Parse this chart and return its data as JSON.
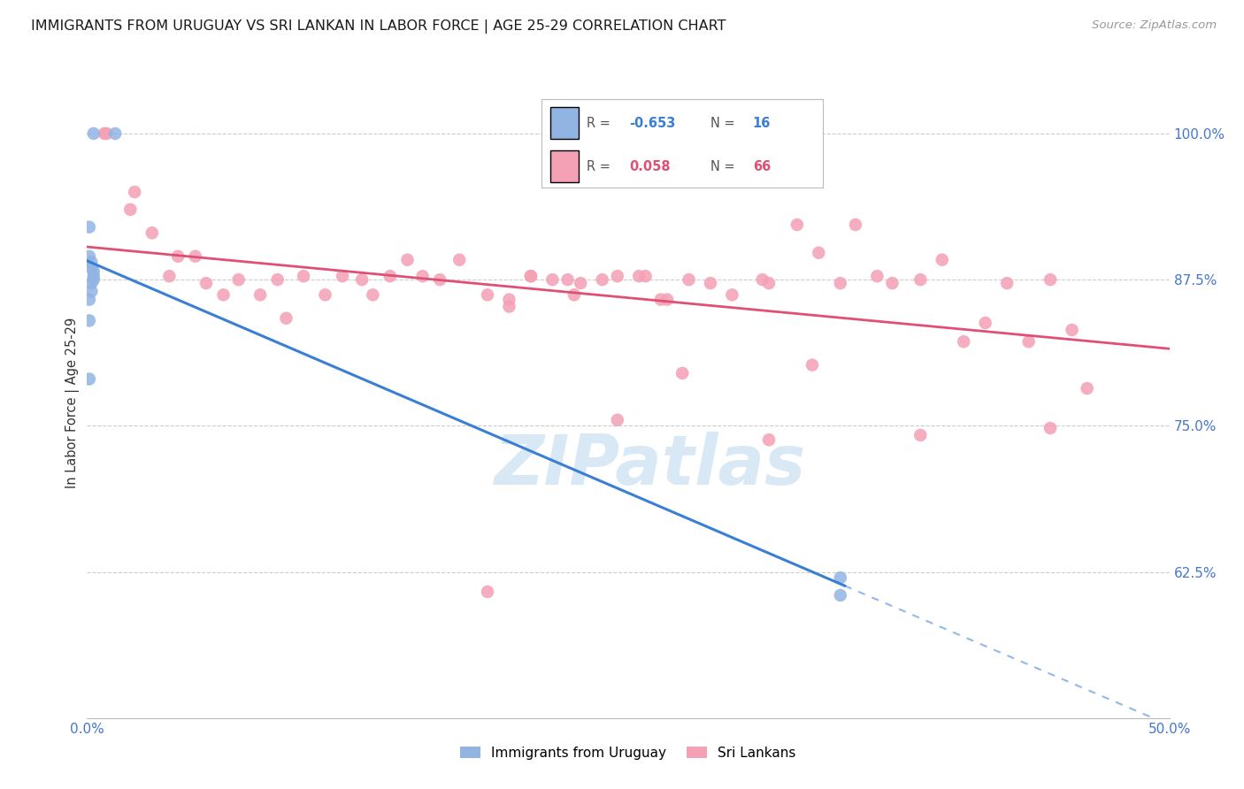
{
  "title": "IMMIGRANTS FROM URUGUAY VS SRI LANKAN IN LABOR FORCE | AGE 25-29 CORRELATION CHART",
  "source": "Source: ZipAtlas.com",
  "ylabel": "In Labor Force | Age 25-29",
  "xlim": [
    0.0,
    0.5
  ],
  "ylim": [
    0.5,
    1.04
  ],
  "yticks": [
    0.625,
    0.75,
    0.875,
    1.0
  ],
  "ytick_labels": [
    "62.5%",
    "75.0%",
    "87.5%",
    "100.0%"
  ],
  "xticks": [
    0.0,
    0.1,
    0.2,
    0.3,
    0.4,
    0.5
  ],
  "xtick_labels": [
    "0.0%",
    "",
    "",
    "",
    "",
    "50.0%"
  ],
  "uruguay_color": "#92b4e3",
  "srilanka_color": "#f4a0b5",
  "uruguay_line_color": "#3a7fd4",
  "srilanka_line_color": "#e05075",
  "background_color": "#ffffff",
  "grid_color": "#cccccc",
  "axis_label_color": "#4477cc",
  "watermark_color": "#d8e8f5",
  "uruguay_points_x": [
    0.003,
    0.013,
    0.001,
    0.001,
    0.002,
    0.002,
    0.003,
    0.003,
    0.003,
    0.002,
    0.002,
    0.001,
    0.001,
    0.001,
    0.348,
    0.348
  ],
  "uruguay_points_y": [
    1.0,
    1.0,
    0.92,
    0.895,
    0.89,
    0.885,
    0.882,
    0.878,
    0.875,
    0.872,
    0.865,
    0.858,
    0.84,
    0.79,
    0.62,
    0.605
  ],
  "srilanka_points_x": [
    0.008,
    0.009,
    0.02,
    0.022,
    0.03,
    0.038,
    0.042,
    0.05,
    0.055,
    0.063,
    0.07,
    0.08,
    0.088,
    0.092,
    0.1,
    0.11,
    0.118,
    0.127,
    0.132,
    0.14,
    0.148,
    0.155,
    0.163,
    0.172,
    0.185,
    0.195,
    0.205,
    0.215,
    0.225,
    0.238,
    0.245,
    0.255,
    0.265,
    0.278,
    0.288,
    0.298,
    0.312,
    0.328,
    0.338,
    0.348,
    0.355,
    0.365,
    0.372,
    0.385,
    0.395,
    0.405,
    0.415,
    0.425,
    0.435,
    0.445,
    0.455,
    0.462,
    0.315,
    0.335,
    0.385,
    0.275,
    0.245,
    0.195,
    0.228,
    0.268,
    0.185,
    0.205,
    0.222,
    0.258,
    0.315,
    0.445
  ],
  "srilanka_points_y": [
    1.0,
    1.0,
    0.935,
    0.95,
    0.915,
    0.878,
    0.895,
    0.895,
    0.872,
    0.862,
    0.875,
    0.862,
    0.875,
    0.842,
    0.878,
    0.862,
    0.878,
    0.875,
    0.862,
    0.878,
    0.892,
    0.878,
    0.875,
    0.892,
    0.862,
    0.858,
    0.878,
    0.875,
    0.862,
    0.875,
    0.878,
    0.878,
    0.858,
    0.875,
    0.872,
    0.862,
    0.875,
    0.922,
    0.898,
    0.872,
    0.922,
    0.878,
    0.872,
    0.875,
    0.892,
    0.822,
    0.838,
    0.872,
    0.822,
    0.748,
    0.832,
    0.782,
    0.738,
    0.802,
    0.742,
    0.795,
    0.755,
    0.852,
    0.872,
    0.858,
    0.608,
    0.878,
    0.875,
    0.878,
    0.872,
    0.875
  ]
}
